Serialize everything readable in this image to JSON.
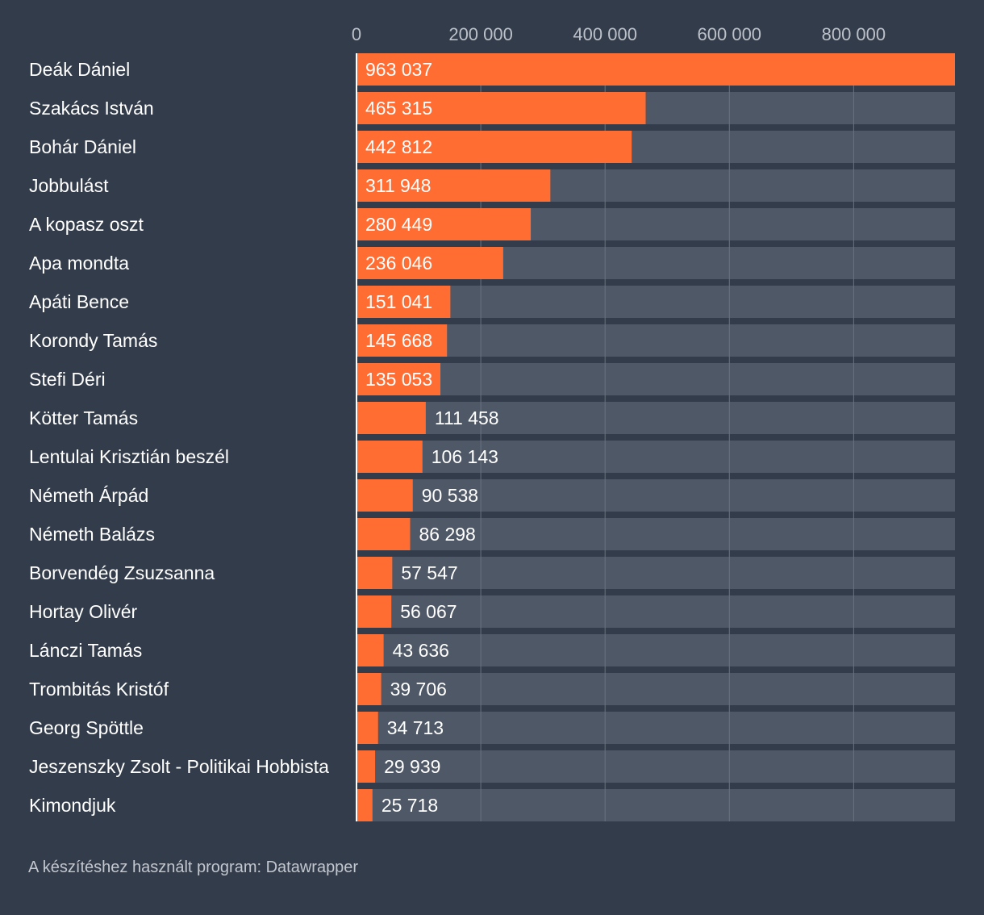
{
  "chart_data": {
    "type": "bar",
    "orientation": "horizontal",
    "title": "",
    "xlabel": "",
    "ylabel": "",
    "xlim": [
      0,
      963037
    ],
    "ticks": [
      0,
      200000,
      400000,
      600000,
      800000
    ],
    "tick_labels": [
      "0",
      "200 000",
      "400 000",
      "600 000",
      "800 000"
    ],
    "grid": true,
    "categories": [
      "Deák Dániel",
      "Szakács István",
      "Bohár Dániel",
      "Jobbulást",
      "A kopasz oszt",
      "Apa mondta",
      "Apáti Bence",
      "Korondy Tamás",
      "Stefi Déri",
      "Kötter Tamás",
      "Lentulai Krisztián beszél",
      "Németh Árpád",
      "Németh Balázs",
      "Borvendég Zsuzsanna",
      "Hortay Olivér",
      "Lánczi Tamás",
      "Trombitás Kristóf",
      "Georg Spöttle",
      "Jeszenszky Zsolt - Politikai Hobbista",
      "Kimondjuk"
    ],
    "values": [
      963037,
      465315,
      442812,
      311948,
      280449,
      236046,
      151041,
      145668,
      135053,
      111458,
      106143,
      90538,
      86298,
      57547,
      56067,
      43636,
      39706,
      34713,
      29939,
      25718
    ],
    "value_labels": [
      "963 037",
      "465 315",
      "442 812",
      "311 948",
      "280 449",
      "236 046",
      "151 041",
      "145 668",
      "135 053",
      "111 458",
      "106 143",
      "90 538",
      "86 298",
      "57 547",
      "56 067",
      "43 636",
      "39 706",
      "34 713",
      "29 939",
      "25 718"
    ]
  },
  "colors": {
    "background": "#333c4a",
    "bar": "#ff6d33",
    "track": "#4f5866",
    "grid": "#6a7380",
    "axis": "#ffffff",
    "text": "#ffffff",
    "tick_text": "#bcc1c9"
  },
  "footer": {
    "credit": "A készítéshez használt program: Datawrapper"
  }
}
